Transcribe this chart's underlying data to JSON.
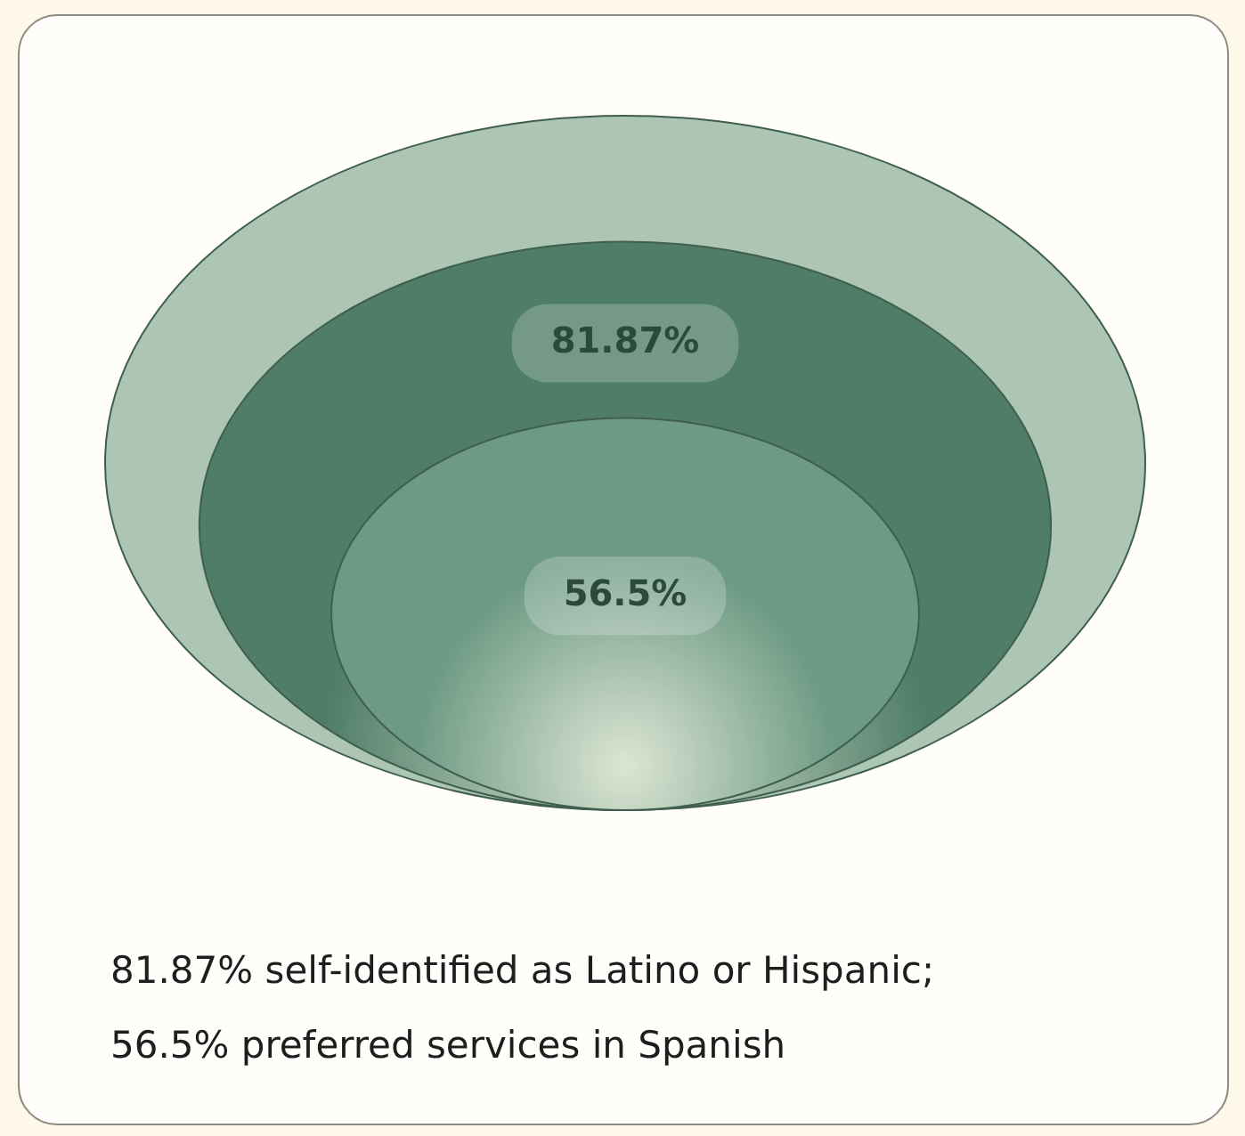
{
  "chart_data": {
    "type": "other",
    "categories": [
      null,
      null
    ],
    "values": [
      81.87,
      56.5
    ],
    "value_labels": [
      "81.87%",
      "56.5%"
    ],
    "colors": [
      "#4f7d68",
      "#6d9a84"
    ],
    "annotations": [
      "81.87% self-identified as Latino or Hispanic;",
      "56.5% preferred services in Spanish"
    ]
  }
}
